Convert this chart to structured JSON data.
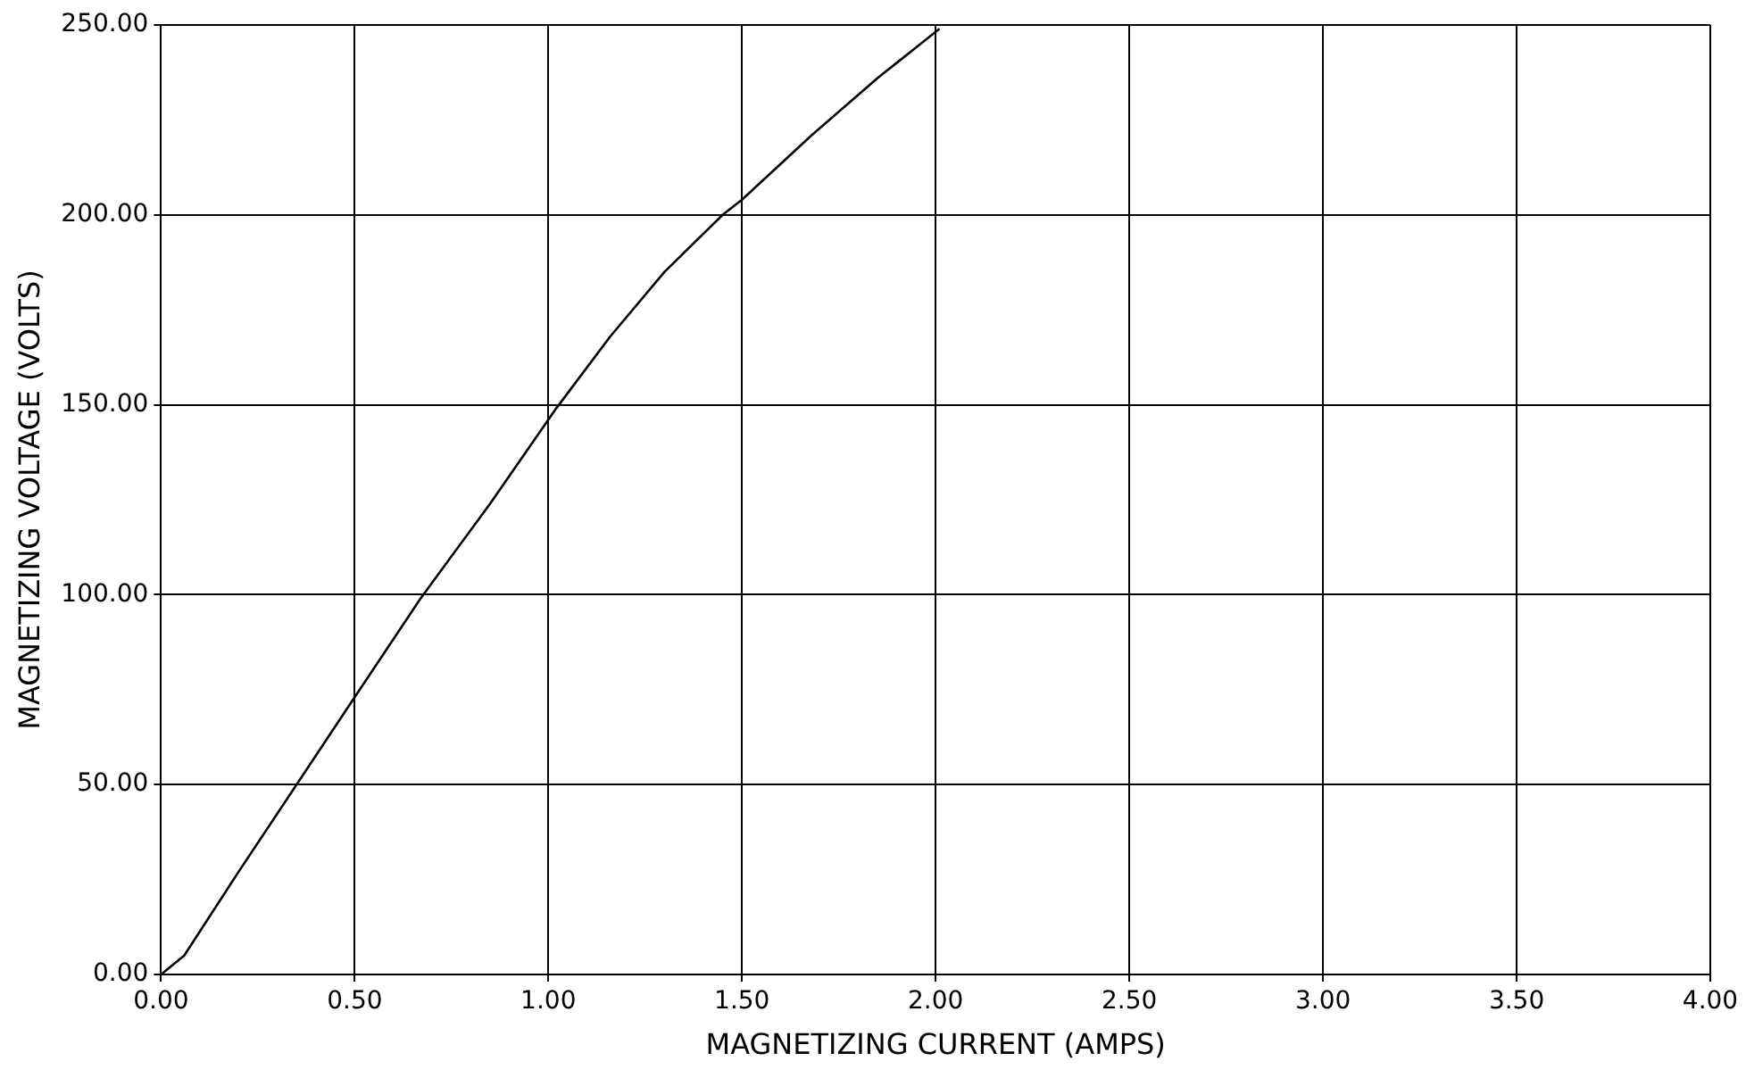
{
  "chart_data": {
    "type": "line",
    "xlabel": "MAGNETIZING CURRENT (AMPS)",
    "ylabel": "MAGNETIZING VOLTAGE (VOLTS)",
    "x": [
      0,
      0.06,
      0.2,
      0.35,
      0.5,
      0.67,
      0.85,
      1.02,
      1.16,
      1.3,
      1.45,
      1.5,
      1.68,
      1.85,
      2.01
    ],
    "series": [
      {
        "color": "#000000",
        "values": [
          0,
          5,
          27,
          50,
          73,
          99,
          124,
          149,
          168,
          185,
          200,
          204,
          221,
          236,
          249
        ]
      }
    ],
    "xlim": [
      0,
      4
    ],
    "xticks": [
      {
        "value": 0,
        "label": "0.00"
      },
      {
        "value": 0.5,
        "label": "0.50"
      },
      {
        "value": 1,
        "label": "1.00"
      },
      {
        "value": 1.5,
        "label": "1.50"
      },
      {
        "value": 2,
        "label": "2.00"
      },
      {
        "value": 2.5,
        "label": "2.50"
      },
      {
        "value": 3,
        "label": "3.00"
      },
      {
        "value": 3.5,
        "label": "3.50"
      },
      {
        "value": 4,
        "label": "4.00"
      }
    ],
    "ylim": [
      0,
      250
    ],
    "yticks": [
      {
        "value": 0,
        "label": "0.00"
      },
      {
        "value": 50,
        "label": "50.00"
      },
      {
        "value": 100,
        "label": "100.00"
      },
      {
        "value": 150,
        "label": "150.00"
      },
      {
        "value": 200,
        "label": "200.00"
      },
      {
        "value": 250,
        "label": "250.00"
      }
    ],
    "grid": true,
    "legend": false
  }
}
